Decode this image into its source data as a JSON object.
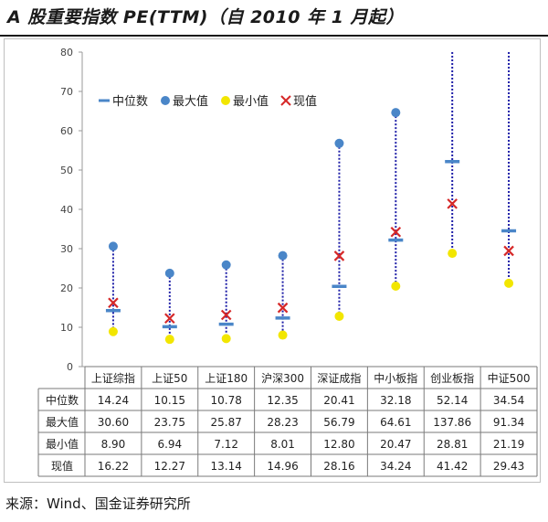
{
  "title": "A 股重要指数 PE(TTM)（自 2010 年 1 月起）",
  "source": "来源：Wind、国金证券研究所",
  "colors": {
    "median": "#4a86c8",
    "max": "#4a86c8",
    "min": "#f2e600",
    "current": "#d62828",
    "range_line": "#1f1fa8"
  },
  "chart_data": {
    "type": "table",
    "ylim": [
      0,
      80
    ],
    "yticks": [
      0,
      10,
      20,
      30,
      40,
      50,
      60,
      70,
      80
    ],
    "categories": [
      "上证综指",
      "上证50",
      "上证180",
      "沪深300",
      "深证成指",
      "中小板指",
      "创业板指",
      "中证500"
    ],
    "legend": [
      {
        "key": "median",
        "label": "中位数",
        "marker": "dash"
      },
      {
        "key": "max",
        "label": "最大值",
        "marker": "dot-blue"
      },
      {
        "key": "min",
        "label": "最小值",
        "marker": "dot-yellow"
      },
      {
        "key": "current",
        "label": "现值",
        "marker": "cross"
      }
    ],
    "series": [
      {
        "key": "median",
        "name": "中位数",
        "values": [
          14.24,
          10.15,
          10.78,
          12.35,
          20.41,
          32.18,
          52.14,
          34.54
        ],
        "display": [
          "14.24",
          "10.15",
          "10.78",
          "12.35",
          "20.41",
          "32.18",
          "52.14",
          "34.54"
        ]
      },
      {
        "key": "max",
        "name": "最大值",
        "values": [
          30.6,
          23.75,
          25.87,
          28.23,
          56.79,
          64.61,
          137.86,
          91.34
        ],
        "display": [
          "30.60",
          "23.75",
          "25.87",
          "28.23",
          "56.79",
          "64.61",
          "137.86",
          "91.34"
        ]
      },
      {
        "key": "min",
        "name": "最小值",
        "values": [
          8.9,
          6.94,
          7.12,
          8.01,
          12.8,
          20.47,
          28.81,
          21.19
        ],
        "display": [
          "8.90",
          "6.94",
          "7.12",
          "8.01",
          "12.80",
          "20.47",
          "28.81",
          "21.19"
        ]
      },
      {
        "key": "current",
        "name": "现值",
        "values": [
          16.22,
          12.27,
          13.14,
          14.96,
          28.16,
          34.24,
          41.42,
          29.43
        ],
        "display": [
          "16.22",
          "12.27",
          "13.14",
          "14.96",
          "28.16",
          "34.24",
          "41.42",
          "29.43"
        ]
      }
    ]
  }
}
